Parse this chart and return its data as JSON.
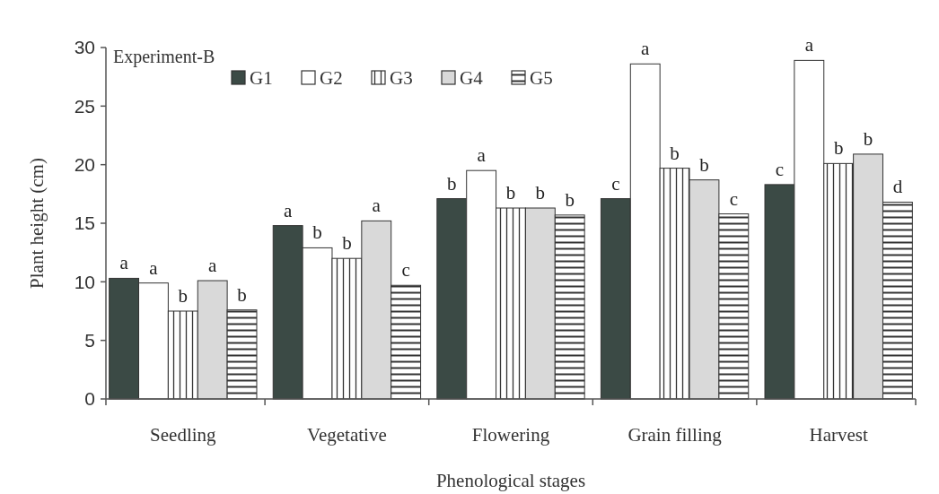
{
  "chart_data": {
    "type": "bar",
    "xlabel": "Phenological  stages",
    "ylabel": "Plant height (cm)",
    "annotations": [
      "Experiment-B"
    ],
    "categories": [
      "Seedling",
      "Vegetative",
      "Flowering",
      "Grain filling",
      "Harvest"
    ],
    "series": [
      {
        "name": "G1",
        "color": "#3b4a45",
        "values": [
          10.3,
          14.8,
          17.1,
          17.1,
          18.3
        ],
        "value_labels": [
          "a",
          "a",
          "b",
          "c",
          "c"
        ]
      },
      {
        "name": "G2",
        "color": "#ffffff",
        "values": [
          9.9,
          12.9,
          19.5,
          28.6,
          28.9
        ],
        "value_labels": [
          "a",
          "b",
          "a",
          "a",
          "a"
        ]
      },
      {
        "name": "G3",
        "color": "#333333",
        "values": [
          7.5,
          12.0,
          16.3,
          19.7,
          20.1
        ],
        "value_labels": [
          "b",
          "b",
          "b",
          "b",
          "b"
        ]
      },
      {
        "name": "G4",
        "color": "#d9d9d9",
        "values": [
          10.1,
          15.2,
          16.3,
          18.7,
          20.9
        ],
        "value_labels": [
          "a",
          "a",
          "b",
          "b",
          "b"
        ]
      },
      {
        "name": "G5",
        "color": "#333333",
        "values": [
          7.6,
          9.7,
          15.7,
          15.8,
          16.8
        ],
        "value_labels": [
          "b",
          "c",
          "b",
          "c",
          "d"
        ]
      }
    ],
    "ylim": [
      0,
      30
    ],
    "yticks": [
      0,
      5,
      10,
      15,
      20,
      25,
      30
    ],
    "legend": "top left",
    "grid": false
  }
}
